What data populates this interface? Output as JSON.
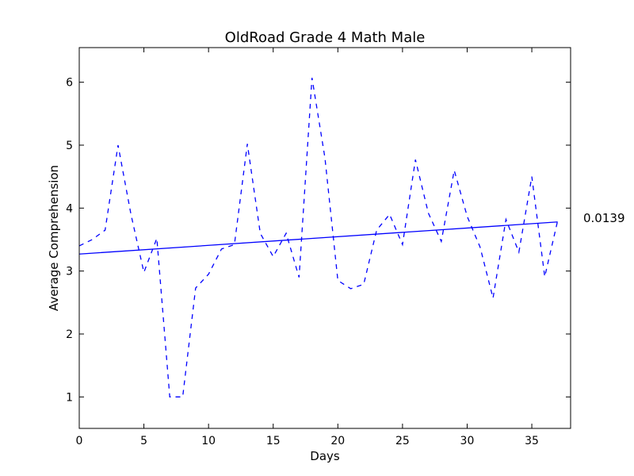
{
  "chart_data": {
    "type": "line",
    "title": "OldRoad Grade 4 Math Male",
    "xlabel": "Days",
    "ylabel": "Average Comprehension",
    "xlim": [
      0,
      38
    ],
    "ylim": [
      0.5,
      6.55
    ],
    "xticks": [
      0,
      5,
      10,
      15,
      20,
      25,
      30,
      35
    ],
    "yticks": [
      1,
      2,
      3,
      4,
      5,
      6
    ],
    "grid": false,
    "annotation": "0.0139",
    "colors": {
      "line": "#0000ff",
      "axes": "#000000"
    },
    "series": [
      {
        "style": "dashed",
        "x": [
          0,
          1,
          2,
          3,
          4,
          5,
          6,
          7,
          8,
          9,
          10,
          11,
          12,
          13,
          14,
          15,
          16,
          17,
          18,
          19,
          20,
          21,
          22,
          23,
          24,
          25,
          26,
          27,
          28,
          29,
          30,
          31,
          32,
          33,
          34,
          35,
          36,
          37
        ],
        "values": [
          3.4,
          3.5,
          3.65,
          5.0,
          3.9,
          2.98,
          3.52,
          1.0,
          1.0,
          2.73,
          2.95,
          3.35,
          3.42,
          5.02,
          3.6,
          3.23,
          3.6,
          2.9,
          6.07,
          4.8,
          2.85,
          2.72,
          2.79,
          3.65,
          3.9,
          3.42,
          4.77,
          3.92,
          3.47,
          4.6,
          3.87,
          3.38,
          2.57,
          3.82,
          3.3,
          4.5,
          2.91,
          3.8
        ]
      },
      {
        "style": "solid",
        "role": "trend",
        "x": [
          0,
          37
        ],
        "values": [
          3.27,
          3.78
        ]
      }
    ]
  }
}
